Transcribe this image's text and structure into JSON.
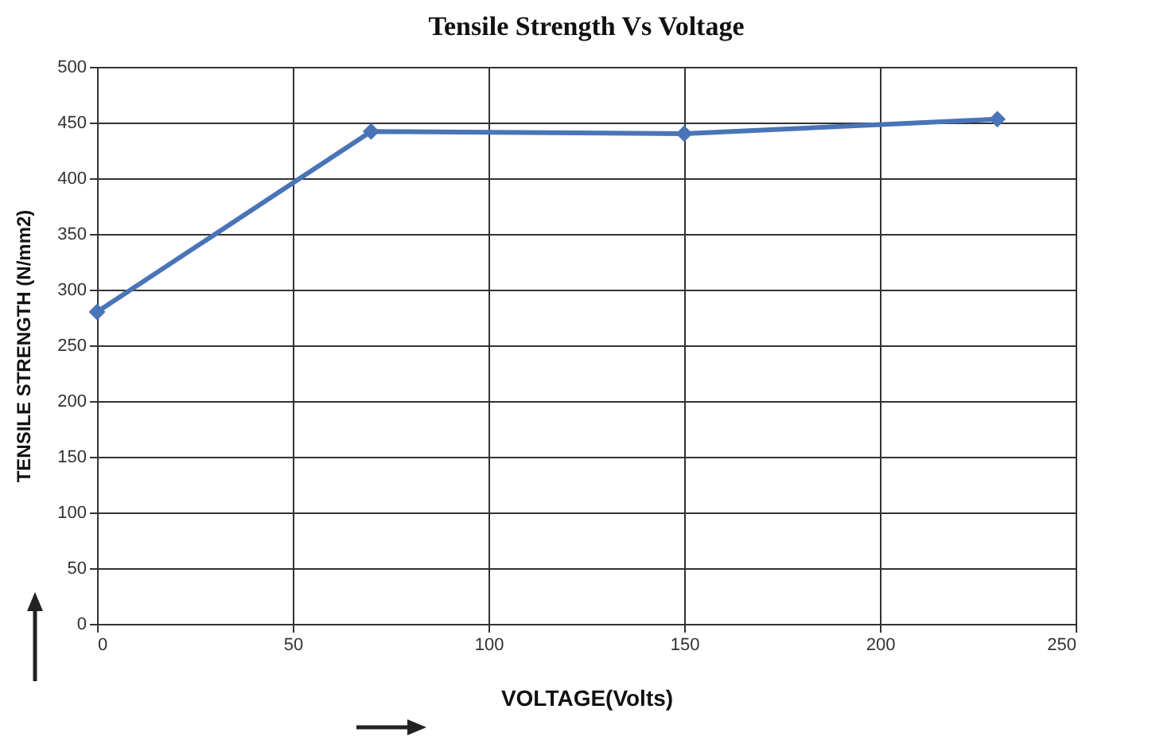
{
  "chart_data": {
    "type": "line",
    "title": "Tensile Strength Vs Voltage",
    "xlabel": "VOLTAGE(Volts)",
    "ylabel": "TENSILE STRENGTH (N/mm2)",
    "x": [
      0,
      70,
      150,
      230
    ],
    "series": [
      {
        "color": "#4a74b8",
        "values": [
          280,
          442,
          440,
          453
        ]
      }
    ],
    "xlim": [
      0,
      250
    ],
    "xticks": [
      0,
      50,
      100,
      150,
      200,
      250
    ],
    "ylim": [
      0,
      500
    ],
    "yticks": [
      0,
      50,
      100,
      150,
      200,
      250,
      300,
      350,
      400,
      450,
      500
    ],
    "grid": true,
    "marker": "diamond",
    "line_style": "solid"
  }
}
